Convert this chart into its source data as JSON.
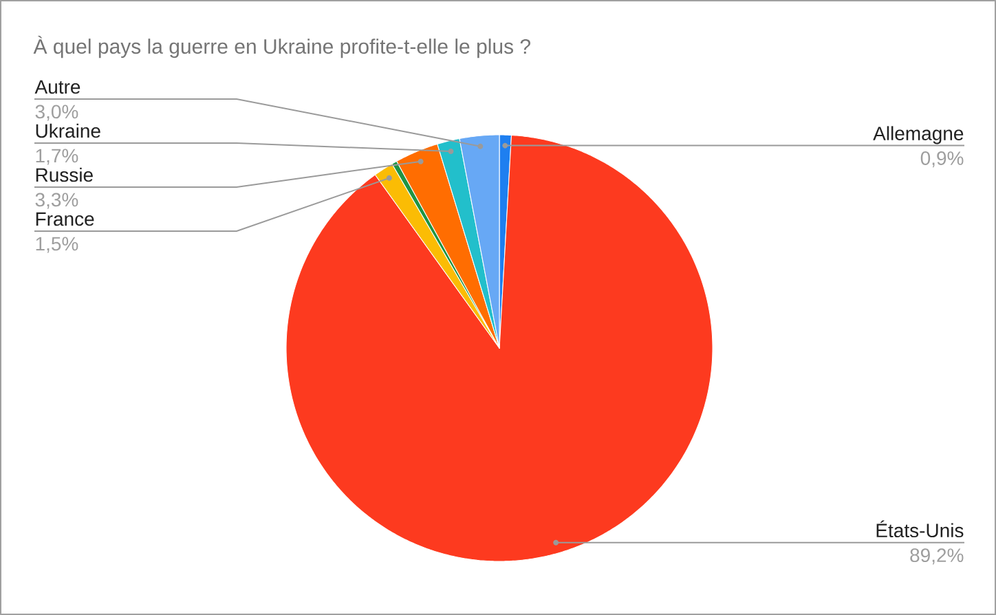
{
  "chart_data": {
    "type": "pie",
    "title": "À quel pays la guerre en Ukraine profite-t-elle le plus ?",
    "categories": [
      "Allemagne",
      "États-Unis",
      "France",
      null,
      "Russie",
      "Ukraine",
      "Autre"
    ],
    "values": [
      0.9,
      89.2,
      1.5,
      0.4,
      3.3,
      1.7,
      3.0
    ],
    "colors": [
      "#1e7ff0",
      "#fd3a1f",
      "#fbbc04",
      "#1f9443",
      "#ff6d01",
      "#22bfcb",
      "#67a8f5"
    ],
    "value_labels": [
      "0,9%",
      "89,2%",
      "1,5%",
      null,
      "3,3%",
      "1,7%",
      "3,0%"
    ]
  }
}
